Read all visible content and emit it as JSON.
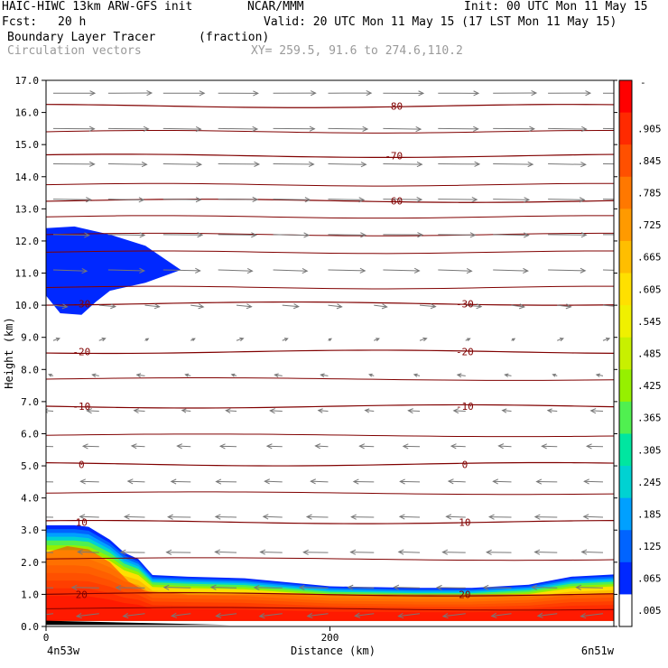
{
  "header": {
    "model": "HAIC-HIWC 13km ARW-GFS init",
    "org": "NCAR/MMM",
    "init": "Init: 00 UTC Mon 11 May 15",
    "fcst_label": "Fcst:",
    "fcst_value": "20 h",
    "valid": "Valid: 20 UTC Mon 11 May 15 (17 LST Mon 11 May 15)",
    "field_name": "Boundary Layer Tracer",
    "field_units": "(fraction)",
    "vectors_label": "Circulation vectors",
    "xy_info": "XY= 259.5, 91.6 to 274.6,110.2"
  },
  "chart_data": {
    "type": "cross-section",
    "title": "Boundary Layer Tracer",
    "xlabel": "Distance (km)",
    "ylabel": "Height (km)",
    "xlim": [
      0,
      400
    ],
    "ylim": [
      0,
      17
    ],
    "x_ticks": [
      0,
      200
    ],
    "x_tick_labels": [
      "0",
      "200"
    ],
    "x_end_labels": [
      "4n53w",
      "6n51w"
    ],
    "y_ticks": [
      0,
      1,
      2,
      3,
      4,
      5,
      6,
      7,
      8,
      9,
      10,
      11,
      12,
      13,
      14,
      15,
      16,
      17
    ],
    "y_tick_labels": [
      "0.0",
      "1.0",
      "2.0",
      "3.0",
      "4.0",
      "5.0",
      "6.0",
      "7.0",
      "8.0",
      "9.0",
      "10.0",
      "11.0",
      "12.0",
      "13.0",
      "14.0",
      "15.0",
      "16.0",
      "17.0"
    ],
    "temperature_contours": [
      {
        "label": "20",
        "height": 1.0
      },
      {
        "label": "10",
        "height": 3.25
      },
      {
        "label": "0",
        "height": 5.05
      },
      {
        "label": "-10",
        "height": 6.85
      },
      {
        "label": "-20",
        "height": 8.55
      },
      {
        "label": "-30",
        "height": 10.05
      },
      {
        "label": "-60",
        "height": 13.25
      },
      {
        "label": "-70",
        "height": 14.65
      },
      {
        "label": "-80",
        "height": 16.2
      }
    ],
    "colorbar": {
      "label_top": "-",
      "tick_labels": [
        ".905",
        ".845",
        ".785",
        ".725",
        ".665",
        ".605",
        ".545",
        ".485",
        ".425",
        ".365",
        ".305",
        ".245",
        ".185",
        ".125",
        ".065",
        ".005"
      ],
      "colors": [
        "#ff0000",
        "#ff2a00",
        "#ff5000",
        "#ff7800",
        "#ff9a00",
        "#ffbe00",
        "#ffe000",
        "#f0f000",
        "#c8f000",
        "#96f000",
        "#50f050",
        "#00e6a0",
        "#00d2d2",
        "#00a0ff",
        "#0064ff",
        "#0028ff",
        "#ffffff"
      ]
    },
    "vector_rows": [
      {
        "height": 16.6,
        "u": 1.0,
        "w": 0.0
      },
      {
        "height": 15.5,
        "u": 0.95,
        "w": -0.02
      },
      {
        "height": 14.4,
        "u": 0.95,
        "w": -0.02
      },
      {
        "height": 13.3,
        "u": 0.9,
        "w": -0.02
      },
      {
        "height": 12.2,
        "u": 0.9,
        "w": -0.02
      },
      {
        "height": 11.1,
        "u": 0.85,
        "w": -0.04
      },
      {
        "height": 10.0,
        "u": 0.35,
        "w": -0.06
      },
      {
        "height": 8.9,
        "u": 0.12,
        "w": 0.08
      },
      {
        "height": 7.8,
        "u": -0.15,
        "w": 0.05
      },
      {
        "height": 6.7,
        "u": -0.25,
        "w": 0.03
      },
      {
        "height": 5.6,
        "u": -0.35,
        "w": 0.02
      },
      {
        "height": 4.5,
        "u": -0.45,
        "w": 0.02
      },
      {
        "height": 3.4,
        "u": -0.5,
        "w": 0.02
      },
      {
        "height": 2.3,
        "u": -0.55,
        "w": 0.02
      },
      {
        "height": 1.2,
        "u": -0.65,
        "w": 0.02
      },
      {
        "height": 0.4,
        "u": -0.5,
        "w": -0.1
      }
    ],
    "upper_tracer_region": {
      "x_start": 0,
      "x_end": 95,
      "z_min": 9.6,
      "z_max": 12.4,
      "value": 0.03
    },
    "boundary_layer_top": [
      [
        0,
        3.15
      ],
      [
        20,
        3.15
      ],
      [
        30,
        3.1
      ],
      [
        45,
        2.7
      ],
      [
        55,
        2.3
      ],
      [
        65,
        2.1
      ],
      [
        75,
        1.6
      ],
      [
        100,
        1.55
      ],
      [
        140,
        1.5
      ],
      [
        200,
        1.25
      ],
      [
        260,
        1.2
      ],
      [
        300,
        1.2
      ],
      [
        340,
        1.3
      ],
      [
        370,
        1.55
      ],
      [
        400,
        1.62
      ]
    ]
  }
}
